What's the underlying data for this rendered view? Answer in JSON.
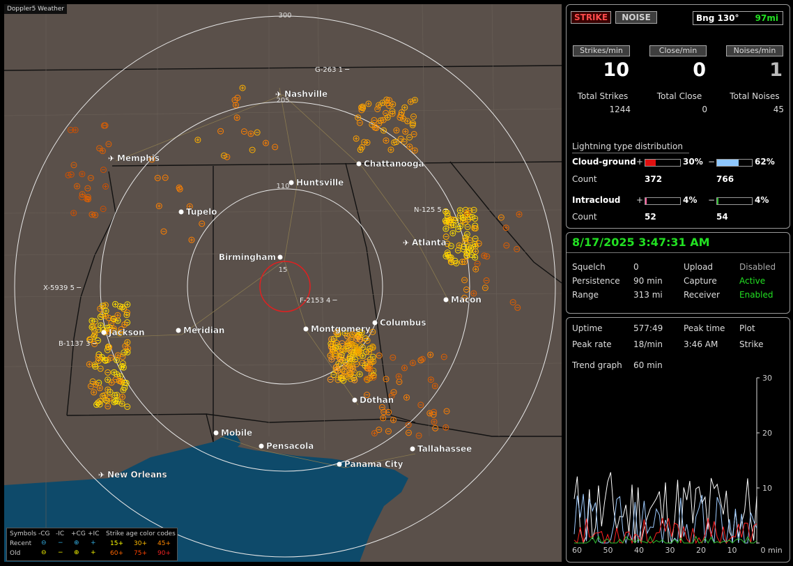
{
  "map": {
    "title": "Doppler5 Weather",
    "range_labels": [
      "300",
      "205",
      "110",
      "15"
    ],
    "cities": [
      {
        "name": "Nashville",
        "airport": true
      },
      {
        "name": "Memphis",
        "airport": true
      },
      {
        "name": "Chattanooga",
        "airport": false
      },
      {
        "name": "Huntsville",
        "airport": false
      },
      {
        "name": "Tupelo",
        "airport": false
      },
      {
        "name": "Birmingham",
        "airport": false
      },
      {
        "name": "Atlanta",
        "airport": true
      },
      {
        "name": "Macon",
        "airport": false
      },
      {
        "name": "Jackson",
        "airport": false
      },
      {
        "name": "Meridian",
        "airport": false
      },
      {
        "name": "Montgomery",
        "airport": false
      },
      {
        "name": "Columbus",
        "airport": false
      },
      {
        "name": "Dothan",
        "airport": false
      },
      {
        "name": "Mobile",
        "airport": false
      },
      {
        "name": "Pensacola",
        "airport": false
      },
      {
        "name": "Tallahassee",
        "airport": false
      },
      {
        "name": "Panama City",
        "airport": false
      },
      {
        "name": "New Orleans",
        "airport": true
      }
    ],
    "storm_labels": [
      "G-263 1",
      "N-125 5",
      "X-5939 5",
      "B-1137 3",
      "F-2153 4"
    ],
    "legend": {
      "symbols_label": "Symbols",
      "cg_minus": "-CG",
      "ic_minus": "-IC",
      "cg_plus": "+CG",
      "ic_plus": "+IC",
      "age_title": "Strike age color codes",
      "recent": "Recent",
      "old": "Old",
      "ages_recent": [
        "15+",
        "30+",
        "45+"
      ],
      "ages_old": [
        "60+",
        "75+",
        "90+"
      ]
    }
  },
  "status": {
    "strike_button": "STRIKE",
    "noise_button": "NOISE",
    "bearing": "Bng 130°",
    "distance": "97mi",
    "strikes_per_min_label": "Strikes/min",
    "close_per_min_label": "Close/min",
    "noises_per_min_label": "Noises/min",
    "strikes_per_min": "10",
    "close_per_min": "0",
    "noises_per_min": "1",
    "total_strikes_label": "Total Strikes",
    "total_close_label": "Total Close",
    "total_noises_label": "Total Noises",
    "total_strikes": "1244",
    "total_close": "0",
    "total_noises": "45",
    "distribution_title": "Lightning type distribution",
    "cg_label": "Cloud-ground",
    "ic_label": "Intracloud",
    "count_label": "Count",
    "plus": "+",
    "minus": "−",
    "cg_plus_pct": "30%",
    "cg_minus_pct": "62%",
    "cg_plus_count": "372",
    "cg_minus_count": "766",
    "ic_plus_pct": "4%",
    "ic_minus_pct": "4%",
    "ic_plus_count": "52",
    "ic_minus_count": "54",
    "cg_plus_fraction": 0.3,
    "cg_minus_fraction": 0.62,
    "ic_plus_fraction": 0.04,
    "ic_minus_fraction": 0.04
  },
  "settings": {
    "datetime": "8/17/2025 3:47:31 AM",
    "squelch_label": "Squelch",
    "squelch": "0",
    "persistence_label": "Persistence",
    "persistence": "90 min",
    "range_label": "Range",
    "range": "313 mi",
    "upload_label": "Upload",
    "upload": "Disabled",
    "capture_label": "Capture",
    "capture": "Active",
    "receiver_label": "Receiver",
    "receiver": "Enabled"
  },
  "trend": {
    "uptime_label": "Uptime",
    "uptime": "577:49",
    "peak_time_label": "Peak time",
    "peak_time": "3:46 AM",
    "plot_label": "Plot",
    "plot": "Strike",
    "peak_rate_label": "Peak rate",
    "peak_rate": "18/min",
    "trend_graph_label": "Trend graph",
    "trend_graph": "60 min",
    "y_ticks": [
      "30",
      "20",
      "10",
      "0"
    ],
    "x_ticks": [
      "60",
      "50",
      "40",
      "30",
      "20",
      "10",
      "0"
    ],
    "x_unit": "min"
  },
  "colors": {
    "strike_red": "#ff4a4a",
    "active_green": "#22e022",
    "cg_plus_bar": "#e01010",
    "cg_minus_bar": "#8ec8ff",
    "ic_plus_bar": "#ff60a0",
    "ic_minus_bar": "#30c030"
  }
}
